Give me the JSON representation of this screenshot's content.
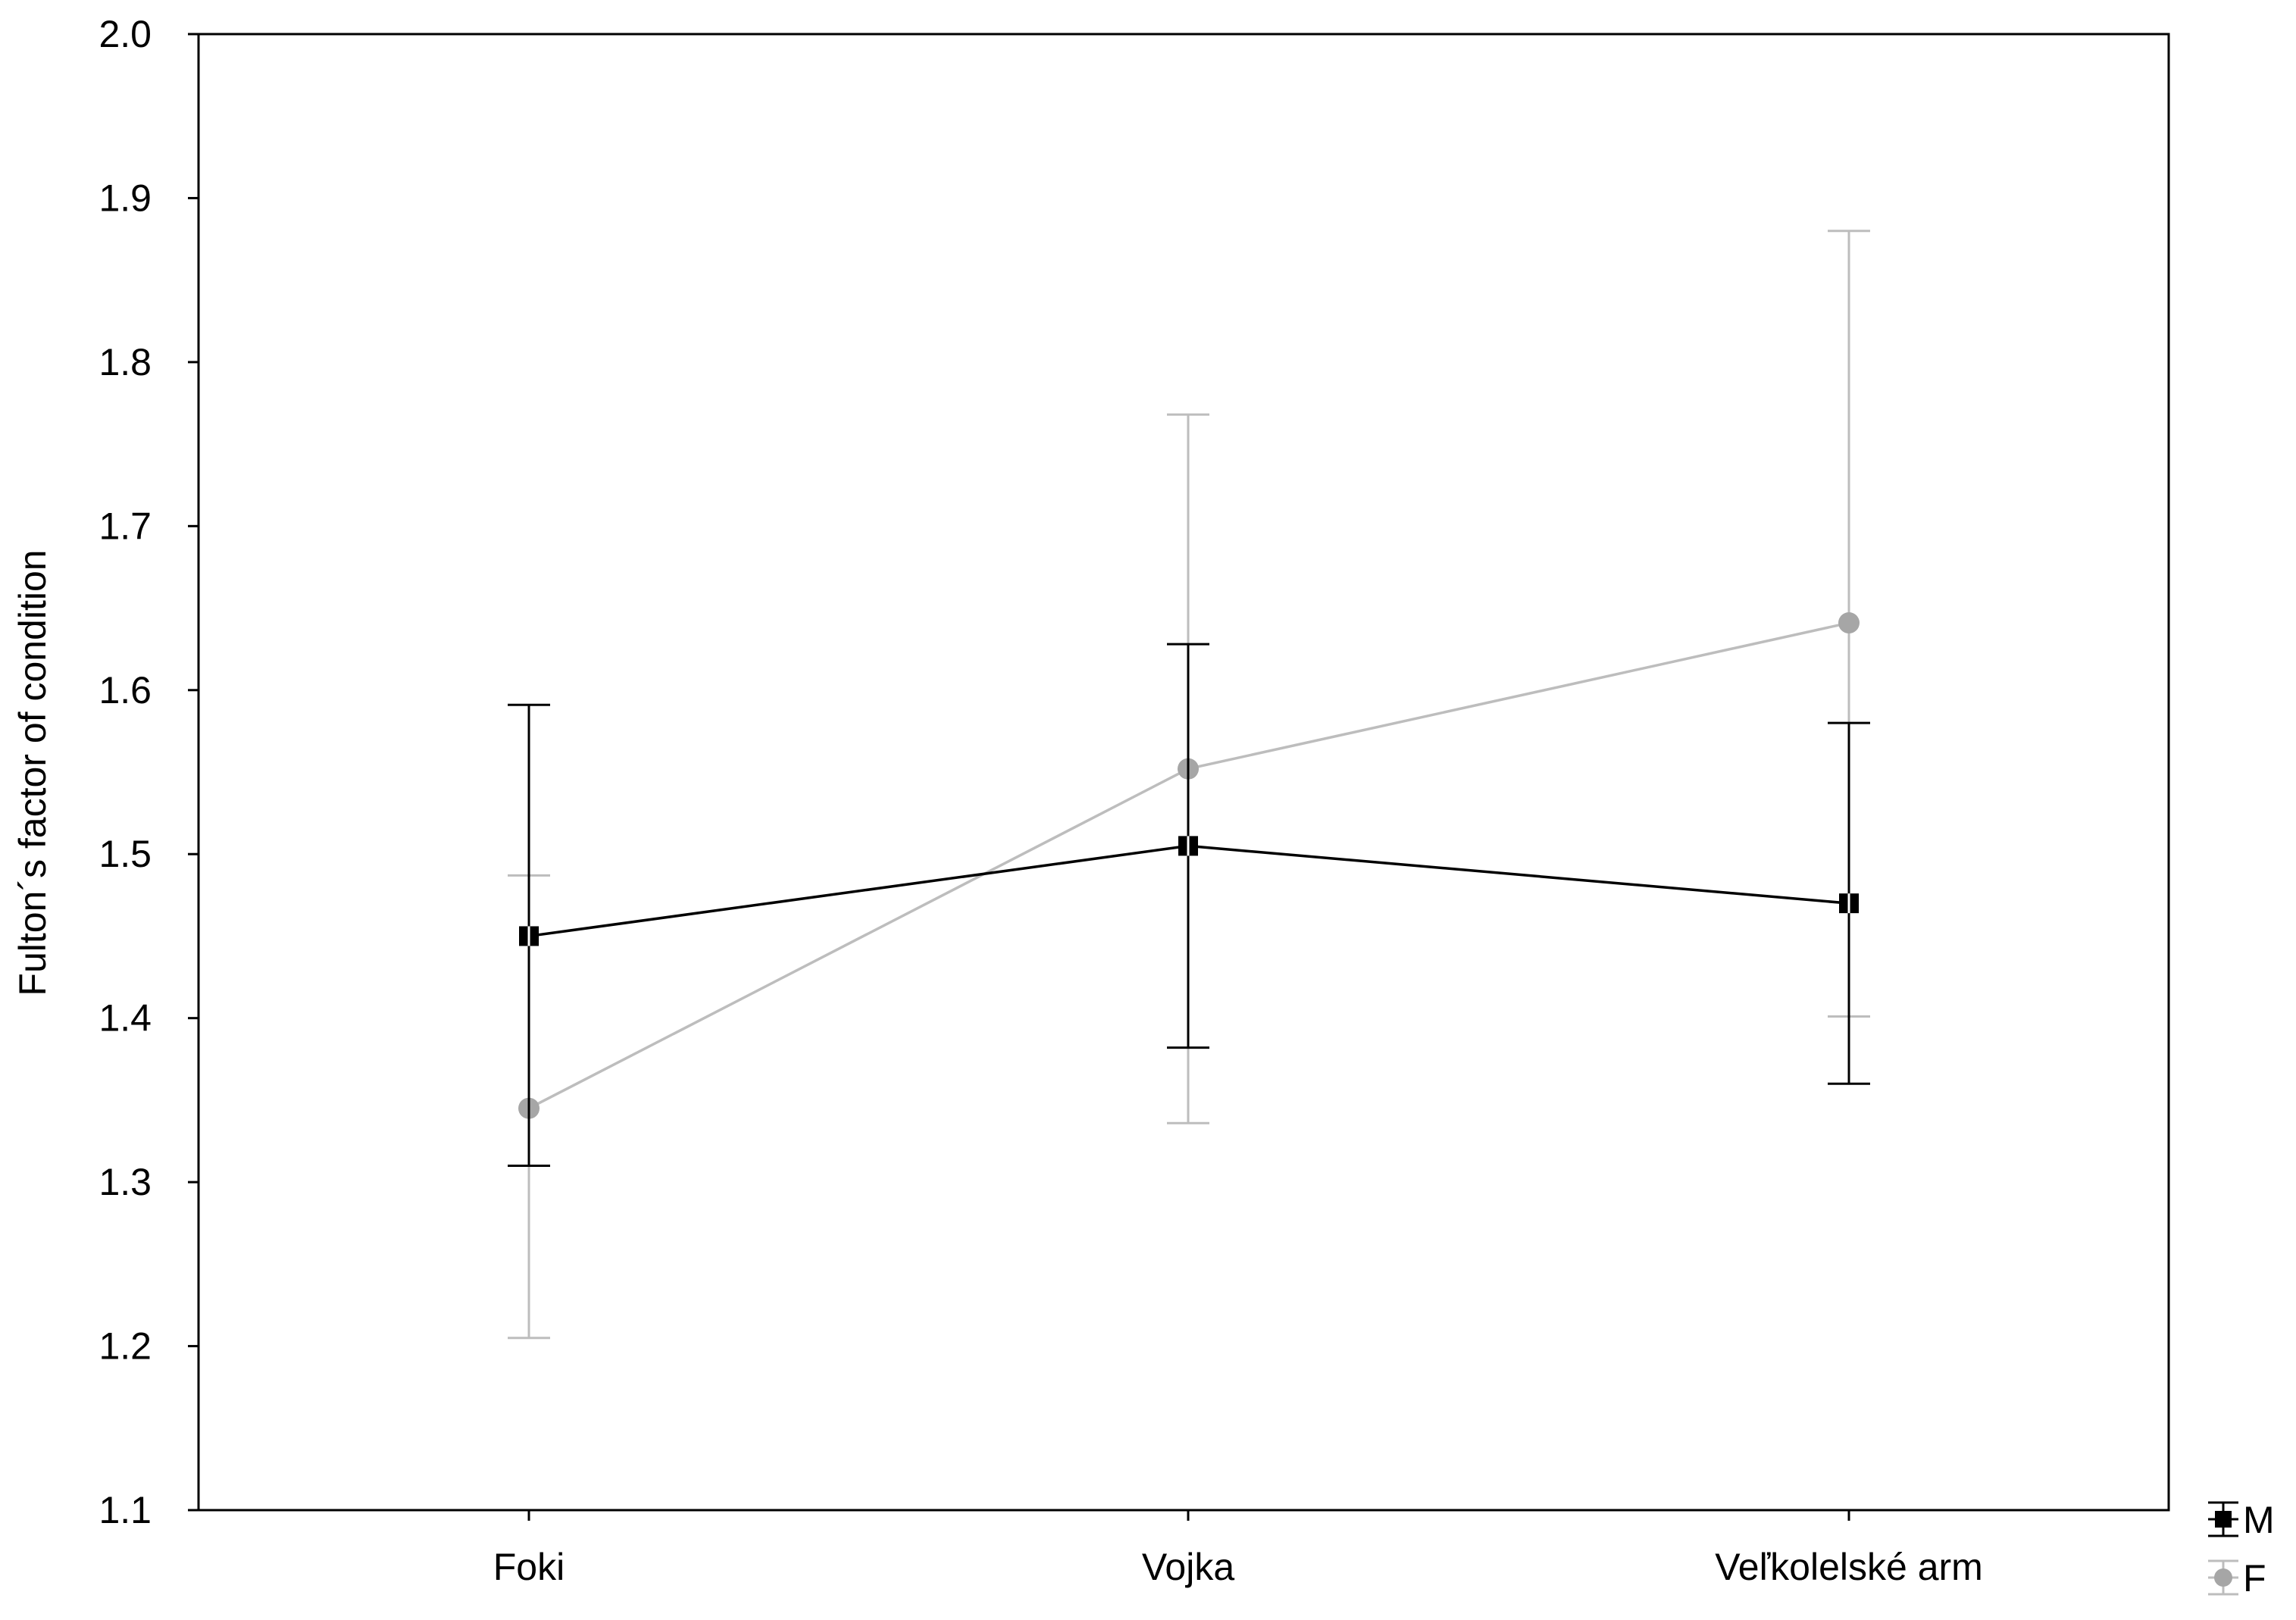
{
  "chart_data": {
    "type": "line",
    "title": "",
    "xlabel": "",
    "ylabel": "Fulton´s factor of condition",
    "categories": [
      "Foki",
      "Vojka",
      "Veľkolelské arm"
    ],
    "ylim": [
      1.1,
      2.0
    ],
    "yticks": [
      "1.1",
      "1.2",
      "1.3",
      "1.4",
      "1.5",
      "1.6",
      "1.7",
      "1.8",
      "1.9",
      "2.0"
    ],
    "grid": false,
    "legend_position": "bottom-right",
    "series": [
      {
        "name": "M",
        "color": "#000000",
        "marker": "square",
        "values": [
          1.45,
          1.505,
          1.47
        ],
        "lower": [
          1.31,
          1.382,
          1.36
        ],
        "upper": [
          1.591,
          1.628,
          1.58
        ]
      },
      {
        "name": "F",
        "color": "#bdbdbd",
        "marker_color": "#a6a6a6",
        "marker": "circle",
        "values": [
          1.345,
          1.552,
          1.641
        ],
        "lower": [
          1.205,
          1.336,
          1.401
        ],
        "upper": [
          1.487,
          1.768,
          1.88
        ]
      }
    ]
  }
}
